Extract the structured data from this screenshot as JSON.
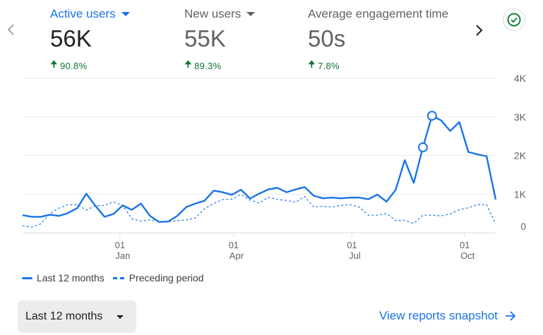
{
  "metrics": [
    {
      "label": "Active users",
      "value": "56K",
      "delta": "90.8%",
      "selected": true
    },
    {
      "label": "New users",
      "value": "55K",
      "delta": "89.3%",
      "selected": false
    },
    {
      "label": "Average engagement time",
      "value": "50s",
      "delta": "7.8%",
      "selected": false
    }
  ],
  "icons": {
    "prev": "chevron-left-icon",
    "next": "chevron-right-icon",
    "status": "check-circle-icon"
  },
  "colors": {
    "accent": "#1a73e8",
    "positive": "#137333",
    "status": "#188038"
  },
  "chart_data": {
    "type": "line",
    "ylim": [
      0,
      4000
    ],
    "y_ticks": [
      {
        "v": 4000,
        "label": "4K"
      },
      {
        "v": 3000,
        "label": "3K"
      },
      {
        "v": 2000,
        "label": "2K"
      },
      {
        "v": 1000,
        "label": "1K"
      },
      {
        "v": 0,
        "label": "0"
      }
    ],
    "x_ticks": [
      {
        "i": 10.7,
        "day": "01",
        "month": "Jan"
      },
      {
        "i": 23.2,
        "day": "01",
        "month": "Apr"
      },
      {
        "i": 36.2,
        "day": "01",
        "month": "Jul"
      },
      {
        "i": 48.6,
        "day": "01",
        "month": "Oct"
      }
    ],
    "series": [
      {
        "name": "Last 12 months",
        "style": "solid",
        "markers": [
          44,
          45
        ],
        "values": [
          455,
          413,
          413,
          467,
          436,
          509,
          636,
          1012,
          697,
          413,
          485,
          709,
          594,
          757,
          436,
          279,
          291,
          436,
          667,
          757,
          830,
          1091,
          1048,
          982,
          1115,
          885,
          1012,
          1121,
          1164,
          1048,
          1121,
          1182,
          958,
          891,
          909,
          891,
          909,
          909,
          867,
          988,
          806,
          1109,
          1879,
          1291,
          2212,
          3030,
          2909,
          2636,
          2867,
          2091,
          2030,
          1982,
          861
        ]
      },
      {
        "name": "Preceding period",
        "style": "dashed",
        "values": [
          182,
          145,
          230,
          497,
          636,
          727,
          727,
          588,
          697,
          709,
          800,
          709,
          364,
          303,
          333,
          291,
          285,
          315,
          333,
          382,
          624,
          757,
          861,
          867,
          988,
          848,
          770,
          921,
          861,
          836,
          788,
          939,
          667,
          685,
          667,
          709,
          727,
          667,
          455,
          455,
          497,
          315,
          321,
          242,
          455,
          455,
          436,
          485,
          594,
          648,
          727,
          727,
          230
        ]
      }
    ]
  },
  "legend": [
    {
      "label": "Last 12 months"
    },
    {
      "label": "Preceding period"
    }
  ],
  "footer": {
    "range_label": "Last 12 months",
    "snapshot_label": "View reports snapshot"
  }
}
